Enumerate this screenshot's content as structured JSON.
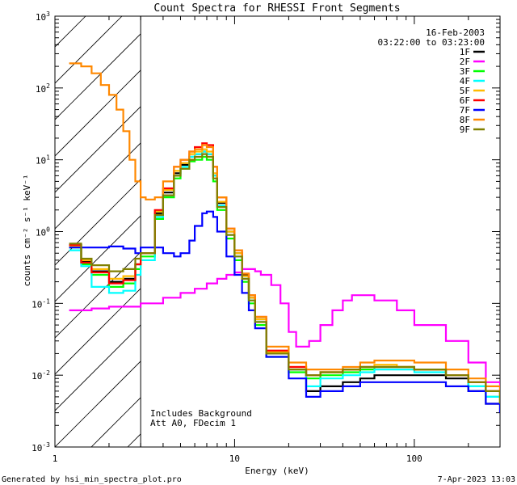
{
  "chart_data": {
    "type": "line",
    "title": "Count Spectra for RHESSI Front Segments",
    "xlabel": "Energy (keV)",
    "ylabel": "counts cm⁻² s⁻¹ keV⁻¹",
    "xscale": "log",
    "yscale": "log",
    "xlim": [
      1,
      300
    ],
    "ylim": [
      0.001,
      1000
    ],
    "x_ticks": [
      {
        "value": 1,
        "label": "1"
      },
      {
        "value": 10,
        "label": "10"
      },
      {
        "value": 100,
        "label": "100"
      }
    ],
    "y_ticks": [
      {
        "value": 0.001,
        "base": "10",
        "exp": "-3"
      },
      {
        "value": 0.01,
        "base": "10",
        "exp": "-2"
      },
      {
        "value": 0.1,
        "base": "10",
        "exp": "-1"
      },
      {
        "value": 1,
        "base": "10",
        "exp": "0"
      },
      {
        "value": 10,
        "base": "10",
        "exp": "1"
      },
      {
        "value": 100,
        "base": "10",
        "exp": "2"
      },
      {
        "value": 1000,
        "base": "10",
        "exp": "3"
      }
    ],
    "hatched_region_kev": [
      1,
      3
    ],
    "date": "16-Feb-2003",
    "time_range": "03:22:00 to 03:23:00",
    "annotations": [
      "Includes Background",
      "Att A0, FDecim 1"
    ],
    "legend_position": "top-right",
    "series": [
      {
        "name": "1F",
        "color": "#000000",
        "x": [
          1.2,
          1.4,
          1.6,
          2.0,
          2.4,
          2.8,
          3.0,
          3.6,
          4.0,
          4.6,
          5.0,
          5.6,
          6.0,
          6.6,
          7.0,
          7.6,
          8.0,
          9.0,
          10,
          11,
          12,
          13,
          15,
          20,
          25,
          30,
          40,
          50,
          60,
          80,
          100,
          150,
          200,
          250,
          300
        ],
        "y": [
          0.65,
          0.38,
          0.28,
          0.2,
          0.22,
          0.35,
          0.5,
          1.8,
          3.5,
          6.5,
          8.5,
          11,
          12,
          13,
          12,
          6,
          2.5,
          1.0,
          0.5,
          0.25,
          0.12,
          0.06,
          0.02,
          0.012,
          0.006,
          0.007,
          0.008,
          0.009,
          0.01,
          0.01,
          0.01,
          0.009,
          0.006,
          0.004,
          0.003
        ]
      },
      {
        "name": "2F",
        "color": "#ff00ff",
        "x": [
          1.2,
          1.6,
          2.0,
          3.0,
          4.0,
          5.0,
          6.0,
          7.0,
          8.0,
          9.0,
          10,
          11,
          12,
          13,
          14,
          16,
          18,
          20,
          22,
          24,
          26,
          30,
          35,
          40,
          45,
          50,
          60,
          80,
          100,
          150,
          200,
          250,
          300
        ],
        "y": [
          0.08,
          0.085,
          0.09,
          0.1,
          0.12,
          0.14,
          0.16,
          0.19,
          0.22,
          0.25,
          0.27,
          0.3,
          0.3,
          0.28,
          0.25,
          0.18,
          0.1,
          0.04,
          0.025,
          0.025,
          0.03,
          0.05,
          0.08,
          0.11,
          0.13,
          0.13,
          0.11,
          0.08,
          0.05,
          0.03,
          0.015,
          0.008,
          0.005
        ]
      },
      {
        "name": "3F",
        "color": "#00ff00",
        "x": [
          1.2,
          1.4,
          1.6,
          2.0,
          2.4,
          2.8,
          3.0,
          3.6,
          4.0,
          4.6,
          5.0,
          5.6,
          6.0,
          6.6,
          7.0,
          7.6,
          8.0,
          9.0,
          10,
          11,
          12,
          13,
          15,
          20,
          25,
          30,
          40,
          50,
          60,
          80,
          100,
          150,
          200,
          250,
          300
        ],
        "y": [
          0.6,
          0.35,
          0.25,
          0.17,
          0.19,
          0.3,
          0.45,
          1.5,
          3.0,
          5.5,
          7.5,
          9.5,
          10,
          11,
          10,
          5,
          2.0,
          0.8,
          0.4,
          0.2,
          0.1,
          0.05,
          0.018,
          0.011,
          0.009,
          0.01,
          0.011,
          0.012,
          0.013,
          0.013,
          0.012,
          0.01,
          0.007,
          0.005,
          0.004
        ]
      },
      {
        "name": "4F",
        "color": "#00ffff",
        "x": [
          1.2,
          1.4,
          1.6,
          2.0,
          2.4,
          2.8,
          3.0,
          3.6,
          4.0,
          4.6,
          5.0,
          5.6,
          6.0,
          6.6,
          7.0,
          7.6,
          8.0,
          9.0,
          10,
          11,
          12,
          13,
          15,
          20,
          25,
          30,
          40,
          50,
          60,
          80,
          100,
          150,
          200,
          250,
          300
        ],
        "y": [
          0.55,
          0.33,
          0.17,
          0.14,
          0.15,
          0.25,
          0.4,
          1.6,
          3.2,
          6.0,
          8.0,
          11,
          12,
          13,
          12,
          6,
          2.3,
          0.9,
          0.45,
          0.22,
          0.11,
          0.055,
          0.02,
          0.012,
          0.007,
          0.009,
          0.01,
          0.011,
          0.012,
          0.012,
          0.011,
          0.01,
          0.007,
          0.005,
          0.004
        ]
      },
      {
        "name": "5F",
        "color": "#ffbb00",
        "x": [
          1.2,
          1.4,
          1.6,
          2.0,
          2.4,
          2.8,
          3.0,
          3.6,
          4.0,
          4.6,
          5.0,
          5.6,
          6.0,
          6.6,
          7.0,
          7.6,
          8.0,
          9.0,
          10,
          11,
          12,
          13,
          15,
          20,
          25,
          30,
          40,
          50,
          60,
          80,
          100,
          150,
          200,
          250,
          300
        ],
        "y": [
          0.62,
          0.4,
          0.3,
          0.22,
          0.24,
          0.35,
          0.5,
          1.9,
          3.8,
          7.0,
          9.0,
          12,
          13,
          14,
          13,
          6.5,
          2.6,
          1.0,
          0.5,
          0.24,
          0.12,
          0.06,
          0.021,
          0.013,
          0.01,
          0.011,
          0.012,
          0.013,
          0.014,
          0.013,
          0.012,
          0.01,
          0.008,
          0.006,
          0.004
        ]
      },
      {
        "name": "6F",
        "color": "#ff0000",
        "x": [
          1.2,
          1.4,
          1.6,
          2.0,
          2.4,
          2.8,
          3.0,
          3.6,
          4.0,
          4.6,
          5.0,
          5.6,
          6.0,
          6.6,
          7.0,
          7.6,
          8.0,
          9.0,
          10,
          11,
          12,
          13,
          15,
          20,
          25,
          30,
          40,
          50,
          60,
          80,
          100,
          150,
          200,
          250,
          300
        ],
        "y": [
          0.65,
          0.37,
          0.27,
          0.19,
          0.21,
          0.35,
          0.5,
          2.0,
          4.0,
          8.0,
          10,
          13,
          15,
          17,
          16,
          8,
          3.0,
          1.1,
          0.55,
          0.26,
          0.13,
          0.065,
          0.022,
          0.013,
          0.01,
          0.011,
          0.012,
          0.013,
          0.013,
          0.013,
          0.012,
          0.01,
          0.008,
          0.006,
          0.004
        ]
      },
      {
        "name": "7F",
        "color": "#0000ff",
        "x": [
          1.2,
          1.6,
          2.0,
          2.4,
          2.8,
          3.0,
          3.6,
          4.0,
          4.6,
          5.0,
          5.6,
          6.0,
          6.6,
          7.0,
          7.6,
          8.0,
          9.0,
          10,
          11,
          12,
          13,
          15,
          20,
          25,
          30,
          40,
          50,
          60,
          80,
          100,
          150,
          200,
          250,
          300
        ],
        "y": [
          0.6,
          0.6,
          0.62,
          0.58,
          0.5,
          0.6,
          0.6,
          0.5,
          0.45,
          0.5,
          0.75,
          1.2,
          1.8,
          1.9,
          1.6,
          1.0,
          0.45,
          0.25,
          0.14,
          0.08,
          0.045,
          0.018,
          0.009,
          0.005,
          0.006,
          0.007,
          0.008,
          0.008,
          0.008,
          0.008,
          0.007,
          0.006,
          0.004,
          0.003
        ]
      },
      {
        "name": "8F",
        "color": "#ff8800",
        "x": [
          1.2,
          1.4,
          1.6,
          1.8,
          2.0,
          2.2,
          2.4,
          2.6,
          2.8,
          3.0,
          3.2,
          3.6,
          4.0,
          4.6,
          5.0,
          5.6,
          6.0,
          6.6,
          7.0,
          7.6,
          8.0,
          9.0,
          10,
          11,
          12,
          13,
          15,
          20,
          25,
          30,
          40,
          50,
          60,
          80,
          100,
          150,
          200,
          250,
          300
        ],
        "y": [
          220,
          200,
          160,
          110,
          80,
          50,
          25,
          10,
          5,
          3.0,
          2.8,
          3.0,
          5.0,
          8.0,
          10,
          13,
          14,
          16,
          15,
          8,
          3.0,
          1.1,
          0.55,
          0.26,
          0.13,
          0.065,
          0.025,
          0.015,
          0.012,
          0.012,
          0.013,
          0.015,
          0.016,
          0.016,
          0.015,
          0.012,
          0.009,
          0.007,
          0.005
        ]
      },
      {
        "name": "9F",
        "color": "#808000",
        "x": [
          1.2,
          1.4,
          1.6,
          2.0,
          2.4,
          2.8,
          3.0,
          3.6,
          4.0,
          4.6,
          5.0,
          5.6,
          6.0,
          6.6,
          7.0,
          7.6,
          8.0,
          9.0,
          10,
          11,
          12,
          13,
          15,
          20,
          25,
          30,
          40,
          50,
          60,
          80,
          100,
          150,
          200,
          250,
          300
        ],
        "y": [
          0.68,
          0.42,
          0.34,
          0.28,
          0.3,
          0.42,
          0.5,
          1.7,
          3.2,
          6.0,
          7.5,
          10,
          11,
          12,
          11,
          5.5,
          2.2,
          0.9,
          0.45,
          0.22,
          0.11,
          0.055,
          0.02,
          0.012,
          0.01,
          0.011,
          0.012,
          0.013,
          0.013,
          0.013,
          0.012,
          0.01,
          0.008,
          0.006,
          0.004
        ]
      }
    ]
  },
  "footer": {
    "generated_by": "Generated by  hsi_min_spectra_plot.pro",
    "timestamp": "7-Apr-2023 13:03"
  }
}
